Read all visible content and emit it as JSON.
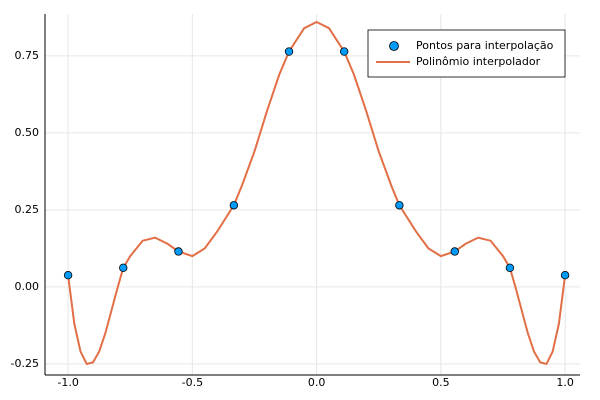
{
  "chart_data": {
    "type": "line",
    "xlim": [
      -1.093,
      1.06
    ],
    "ylim": [
      -0.286,
      0.886
    ],
    "xticks": [
      {
        "value": -1,
        "label": "-1.0"
      },
      -0.5,
      {
        "value": 0,
        "label": "0.0"
      },
      0.5,
      {
        "value": 1,
        "label": "1.0"
      }
    ],
    "yticks": [
      -0.25,
      {
        "value": 0,
        "label": "0.00"
      },
      0.25,
      {
        "value": 0.5,
        "label": "0.50"
      },
      0.75
    ],
    "grid": true,
    "legend": "top-right",
    "series": [
      {
        "name": "Pontos para interpolação",
        "type": "scatter",
        "color": "#009af9",
        "x": [
          -1,
          -0.778,
          -0.556,
          -0.333,
          -0.111,
          0.111,
          0.333,
          0.556,
          0.778,
          1
        ],
        "values": [
          0.038,
          0.062,
          0.115,
          0.265,
          0.764,
          0.764,
          0.265,
          0.115,
          0.062,
          0.038
        ]
      },
      {
        "name": "Polinômio interpolador",
        "type": "line",
        "color": "#e26f46",
        "x": [
          -1,
          -0.975,
          -0.95,
          -0.925,
          -0.9,
          -0.875,
          -0.85,
          -0.8,
          -0.778,
          -0.75,
          -0.7,
          -0.65,
          -0.6,
          -0.556,
          -0.5,
          -0.45,
          -0.4,
          -0.333,
          -0.3,
          -0.25,
          -0.2,
          -0.15,
          -0.111,
          -0.05,
          0,
          0.05,
          0.111,
          0.15,
          0.2,
          0.25,
          0.3,
          0.333,
          0.4,
          0.45,
          0.5,
          0.556,
          0.6,
          0.65,
          0.7,
          0.75,
          0.778,
          0.8,
          0.85,
          0.875,
          0.9,
          0.925,
          0.95,
          0.975,
          1
        ],
        "values": [
          0.038,
          -0.12,
          -0.21,
          -0.25,
          -0.245,
          -0.21,
          -0.15,
          0,
          0.062,
          0.1,
          0.15,
          0.16,
          0.14,
          0.115,
          0.1,
          0.125,
          0.18,
          0.265,
          0.33,
          0.44,
          0.57,
          0.69,
          0.764,
          0.84,
          0.86,
          0.84,
          0.764,
          0.69,
          0.57,
          0.44,
          0.33,
          0.265,
          0.18,
          0.125,
          0.1,
          0.115,
          0.14,
          0.16,
          0.15,
          0.1,
          0.062,
          0,
          -0.15,
          -0.21,
          -0.245,
          -0.25,
          -0.21,
          -0.12,
          0.038
        ]
      }
    ]
  }
}
